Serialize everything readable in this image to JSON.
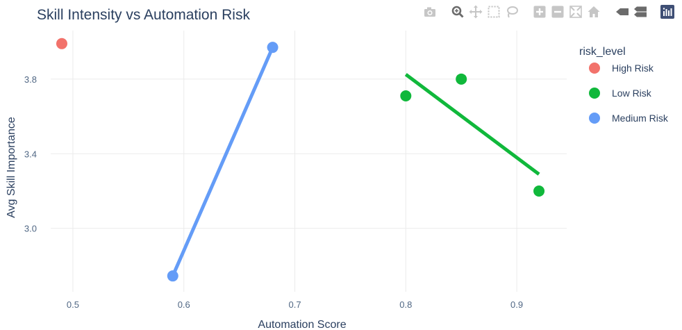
{
  "modebar": {
    "buttons": [
      {
        "name": "camera-icon",
        "group": 0
      },
      {
        "name": "zoom-icon",
        "group": 1
      },
      {
        "name": "pan-icon",
        "group": 1
      },
      {
        "name": "box-select-icon",
        "group": 1
      },
      {
        "name": "lasso-select-icon",
        "group": 1
      },
      {
        "name": "zoom-in-icon",
        "group": 2
      },
      {
        "name": "zoom-out-icon",
        "group": 2
      },
      {
        "name": "autoscale-icon",
        "group": 2
      },
      {
        "name": "reset-axes-icon",
        "group": 2
      },
      {
        "name": "hover-closest-icon",
        "group": 3
      },
      {
        "name": "hover-compare-icon",
        "group": 3
      },
      {
        "name": "plotly-logo-icon",
        "group": 4
      }
    ],
    "icon_color": "#c6c6c6",
    "icon_dark": "#6b6b6b",
    "logo_color": "#3f4f75"
  },
  "chart_data": {
    "type": "scatter",
    "title": "Skill Intensity vs Automation Risk",
    "xlabel": "Automation Score",
    "ylabel": "Avg Skill Importance",
    "xlim": [
      0.48,
      0.945
    ],
    "ylim": [
      2.66,
      4.06
    ],
    "xticks": [
      0.5,
      0.6,
      0.7,
      0.8,
      0.9
    ],
    "xtick_labels": [
      "0.5",
      "0.6",
      "0.7",
      "0.8",
      "0.9"
    ],
    "yticks": [
      3.0,
      3.4,
      3.8
    ],
    "ytick_labels": [
      "3.0",
      "3.4",
      "3.8"
    ],
    "grid": true,
    "legend_title": "risk_level",
    "legend_position": "right",
    "series": [
      {
        "name": "High Risk",
        "color": "#f2726b",
        "points": [
          {
            "x": 0.49,
            "y": 3.99
          }
        ],
        "trendline": []
      },
      {
        "name": "Low Risk",
        "color": "#10b83b",
        "points": [
          {
            "x": 0.8,
            "y": 3.71
          },
          {
            "x": 0.85,
            "y": 3.8
          },
          {
            "x": 0.92,
            "y": 3.2
          }
        ],
        "trendline": [
          {
            "x": 0.8,
            "y": 3.825
          },
          {
            "x": 0.92,
            "y": 3.29
          }
        ]
      },
      {
        "name": "Medium Risk",
        "color": "#649cf7",
        "points": [
          {
            "x": 0.59,
            "y": 2.745
          },
          {
            "x": 0.68,
            "y": 3.97
          }
        ],
        "trendline": [
          {
            "x": 0.59,
            "y": 2.745
          },
          {
            "x": 0.68,
            "y": 3.97
          }
        ]
      }
    ]
  }
}
